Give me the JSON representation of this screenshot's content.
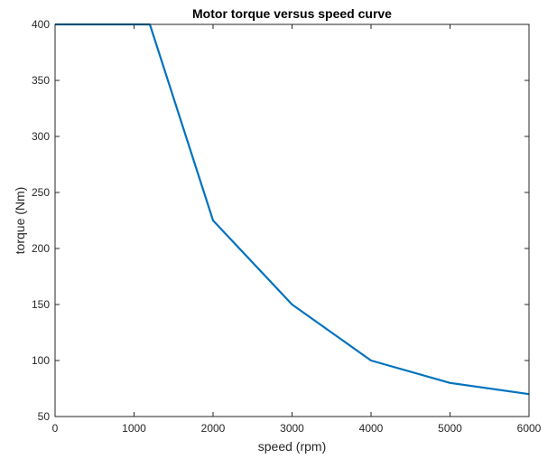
{
  "chart_data": {
    "type": "line",
    "title": "Motor torque versus speed curve",
    "xlabel": "speed (rpm)",
    "ylabel": "torque (Nm)",
    "xlim": [
      0,
      6000
    ],
    "ylim": [
      50,
      400
    ],
    "xticks": [
      0,
      1000,
      2000,
      3000,
      4000,
      5000,
      6000
    ],
    "yticks": [
      50,
      100,
      150,
      200,
      250,
      300,
      350,
      400
    ],
    "grid": false,
    "box": true,
    "series": [
      {
        "color": "#0072BD",
        "x": [
          0,
          1200,
          2000,
          3000,
          4000,
          5000,
          6000
        ],
        "y": [
          400,
          400,
          225,
          150,
          100,
          80,
          70
        ]
      }
    ]
  }
}
